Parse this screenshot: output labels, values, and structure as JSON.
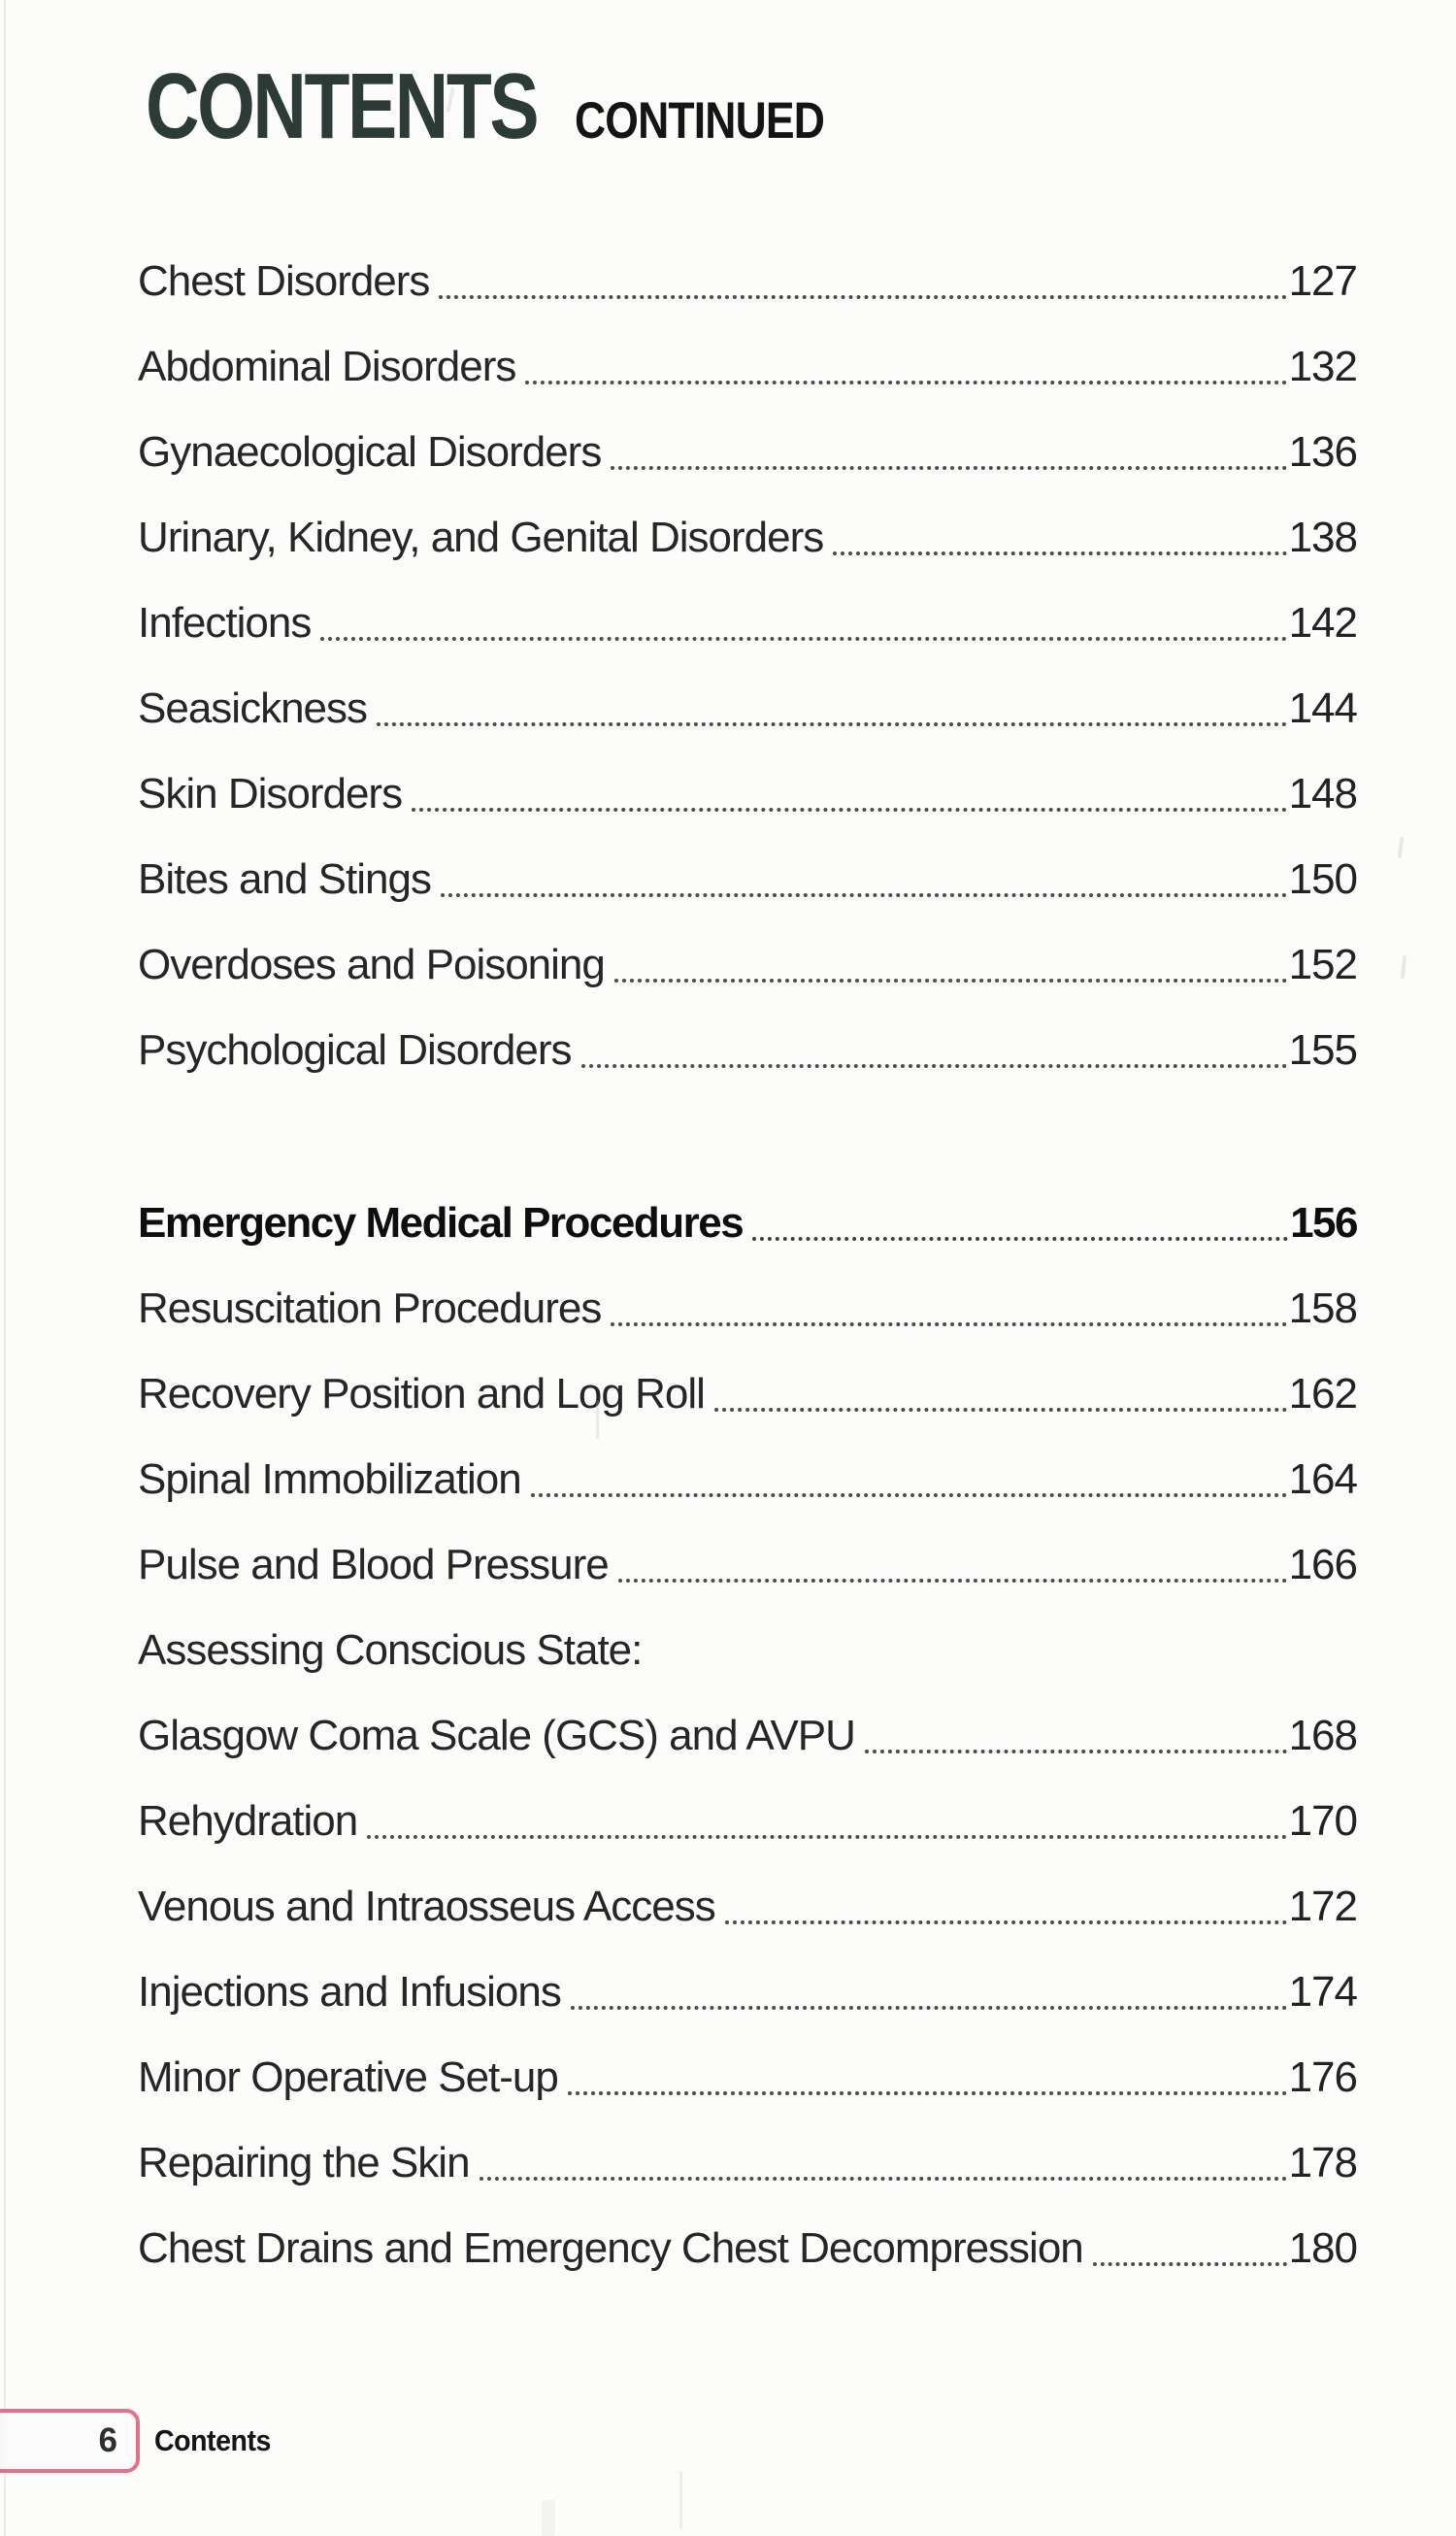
{
  "page": {
    "title": "CONTENTS",
    "title_suffix": "CONTINUED",
    "colors": {
      "title_green": "#2c3a38",
      "body_text": "#262626",
      "dot_leader": "#4d4d4d",
      "footer_tab_border": "#e2718a",
      "paper": "#fcfcfb"
    },
    "footer": {
      "page_number": "6",
      "section_label": "Contents"
    }
  },
  "toc": {
    "sections": [
      {
        "entries": [
          {
            "label": "Chest Disorders",
            "page": "127"
          },
          {
            "label": "Abdominal Disorders",
            "page": "132"
          },
          {
            "label": "Gynaecological Disorders",
            "page": "136"
          },
          {
            "label": "Urinary, Kidney, and Genital Disorders",
            "page": "138"
          },
          {
            "label": "Infections",
            "page": "142"
          },
          {
            "label": "Seasickness",
            "page": "144"
          },
          {
            "label": "Skin Disorders",
            "page": "148"
          },
          {
            "label": "Bites and Stings",
            "page": "150"
          },
          {
            "label": "Overdoses and Poisoning",
            "page": "152"
          },
          {
            "label": "Psychological Disorders",
            "page": "155"
          }
        ]
      },
      {
        "header": {
          "label": "Emergency Medical Procedures",
          "page": "156"
        },
        "entries": [
          {
            "label": "Resuscitation Procedures",
            "page": "158"
          },
          {
            "label": "Recovery Position and Log Roll",
            "page": "162"
          },
          {
            "label": "Spinal Immobilization",
            "page": "164"
          },
          {
            "label": "Pulse and Blood Pressure",
            "page": "166"
          },
          {
            "label": "Assessing Conscious State:",
            "page": ""
          },
          {
            "label": "Glasgow Coma Scale (GCS) and AVPU",
            "page": "168"
          },
          {
            "label": "Rehydration",
            "page": "170"
          },
          {
            "label": "Venous and Intraosseus Access",
            "page": "172"
          },
          {
            "label": "Injections and Infusions",
            "page": "174"
          },
          {
            "label": "Minor Operative Set-up",
            "page": "176"
          },
          {
            "label": "Repairing the Skin",
            "page": "178"
          },
          {
            "label": "Chest Drains and Emergency Chest Decompression",
            "page": "180"
          }
        ]
      }
    ]
  }
}
